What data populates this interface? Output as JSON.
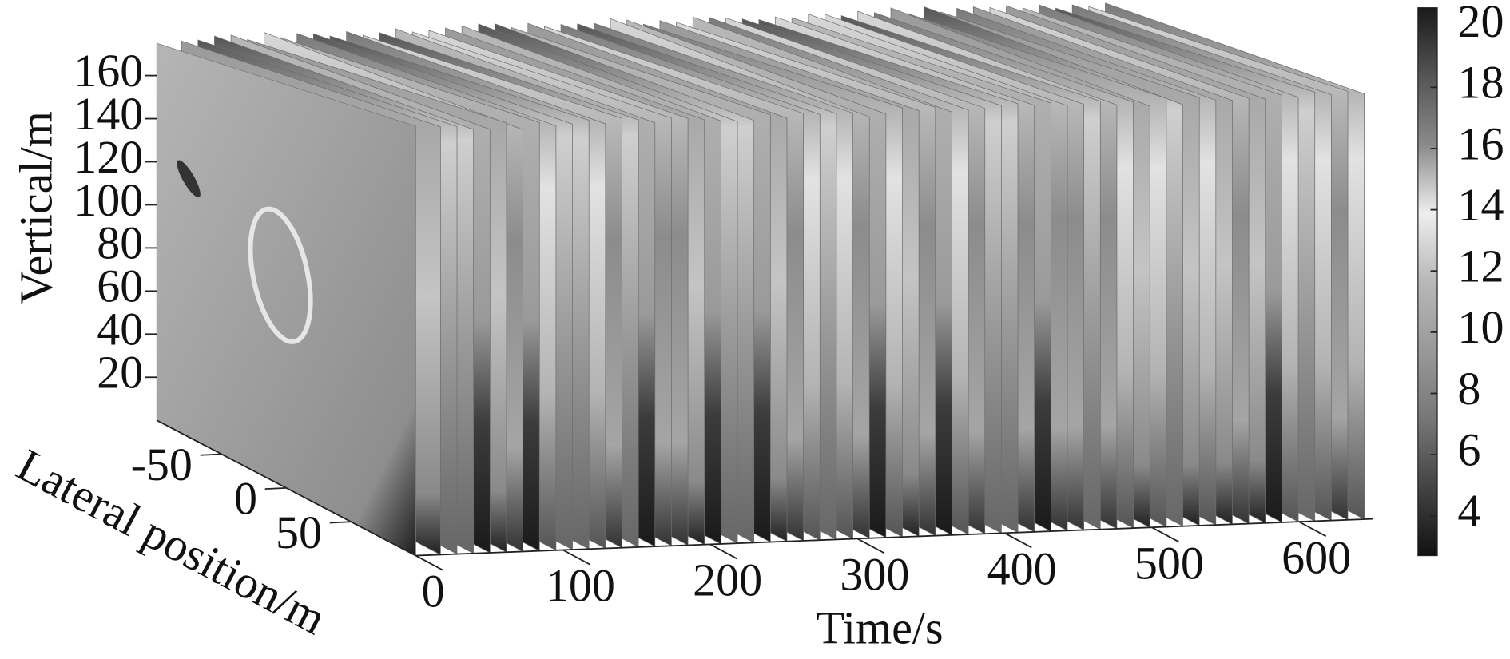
{
  "chart_data": {
    "type": "slice3d",
    "x_label": "Time/s",
    "y_label": "Lateral position/m",
    "z_label": "Vertical/m",
    "xlim": [
      0,
      650
    ],
    "xticks": [
      0,
      100,
      200,
      300,
      400,
      500,
      600
    ],
    "ylim": [
      -100,
      100
    ],
    "yticks": [
      -50,
      0,
      50
    ],
    "zlim": [
      0,
      175
    ],
    "zticks": [
      20,
      40,
      60,
      80,
      100,
      120,
      140,
      160
    ],
    "colorbar": {
      "clim": [
        2.7,
        20.6
      ],
      "ticks": [
        4,
        6,
        8,
        10,
        12,
        14,
        16,
        18,
        20
      ],
      "colors": [
        "#111111",
        "#444444",
        "#777777",
        "#999999",
        "#b8b8b8",
        "#eeeeee",
        "#8a8a8a",
        "#555555",
        "#1a1a1a"
      ]
    }
  }
}
